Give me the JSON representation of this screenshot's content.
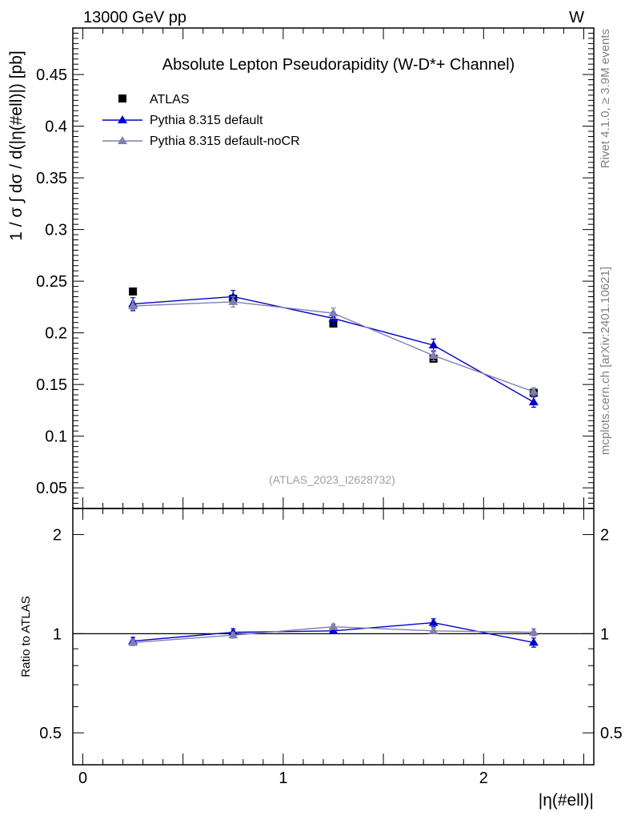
{
  "header": {
    "energy_label": "13000 GeV pp",
    "process_label": "W"
  },
  "side_labels": {
    "rivet": "Rivet 4.1.0, ≥ 3.9M events",
    "mcplots": "mcplots.cern.ch [arXiv:2401.10621]"
  },
  "chart_data": [
    {
      "type": "scatter",
      "title": "Absolute Lepton Pseudorapidity (W-D*+ Channel)",
      "ylabel": "1 / σ ∫ dσ / d(|η(#ell)|) [pb]",
      "xlabel": "|η(#ell)|",
      "watermark": "(ATLAS_2023_I2628732)",
      "xlim": [
        -0.05,
        2.55
      ],
      "ylim": [
        0.03,
        0.495
      ],
      "yticks": [
        0.05,
        0.1,
        0.15,
        0.2,
        0.25,
        0.3,
        0.35,
        0.4,
        0.45
      ],
      "ytick_labels": [
        "0.05",
        "0.1",
        "0.15",
        "0.2",
        "0.25",
        "0.3",
        "0.35",
        "0.4",
        "0.45"
      ],
      "x": [
        0.25,
        0.75,
        1.25,
        1.75,
        2.25
      ],
      "series": [
        {
          "name": "ATLAS",
          "color": "#000000",
          "marker": "square",
          "line": false,
          "values": [
            0.24,
            0.233,
            0.209,
            0.175,
            0.142
          ],
          "errors": [
            0,
            0,
            0,
            0,
            0
          ]
        },
        {
          "name": "Pythia 8.315 default",
          "color": "#0000cc",
          "marker": "triangle",
          "line": true,
          "values": [
            0.228,
            0.235,
            0.214,
            0.188,
            0.133
          ],
          "errors": [
            0.006,
            0.006,
            0.006,
            0.006,
            0.005
          ]
        },
        {
          "name": "Pythia 8.315 default-noCR",
          "color": "#7f7fb0",
          "marker": "triangle",
          "line": true,
          "values": [
            0.226,
            0.23,
            0.219,
            0.178,
            0.143
          ],
          "errors": [
            0.005,
            0.005,
            0.005,
            0.005,
            0.004
          ]
        }
      ]
    },
    {
      "type": "scatter",
      "ylabel": "Ratio to ATLAS",
      "xlabel": "|η(#ell)|",
      "xlim": [
        -0.05,
        2.55
      ],
      "ylim": [
        0.4,
        2.4
      ],
      "yscale": "log",
      "yticks": [
        0.5,
        1,
        2
      ],
      "ytick_labels": [
        "0.5",
        "1",
        "2"
      ],
      "xticks": [
        0,
        1,
        2
      ],
      "xtick_labels": [
        "0",
        "1",
        "2"
      ],
      "x": [
        0.25,
        0.75,
        1.25,
        1.75,
        2.25
      ],
      "reference": 1,
      "series": [
        {
          "name": "Pythia 8.315 default",
          "color": "#0000cc",
          "marker": "triangle",
          "values": [
            0.95,
            1.01,
            1.02,
            1.08,
            0.94
          ],
          "errors": [
            0.025,
            0.025,
            0.02,
            0.03,
            0.03
          ]
        },
        {
          "name": "Pythia 8.315 default-noCR",
          "color": "#7f7fb0",
          "marker": "triangle",
          "values": [
            0.94,
            0.99,
            1.05,
            1.02,
            1.01
          ],
          "errors": [
            0.02,
            0.02,
            0.02,
            0.02,
            0.025
          ]
        }
      ]
    }
  ]
}
